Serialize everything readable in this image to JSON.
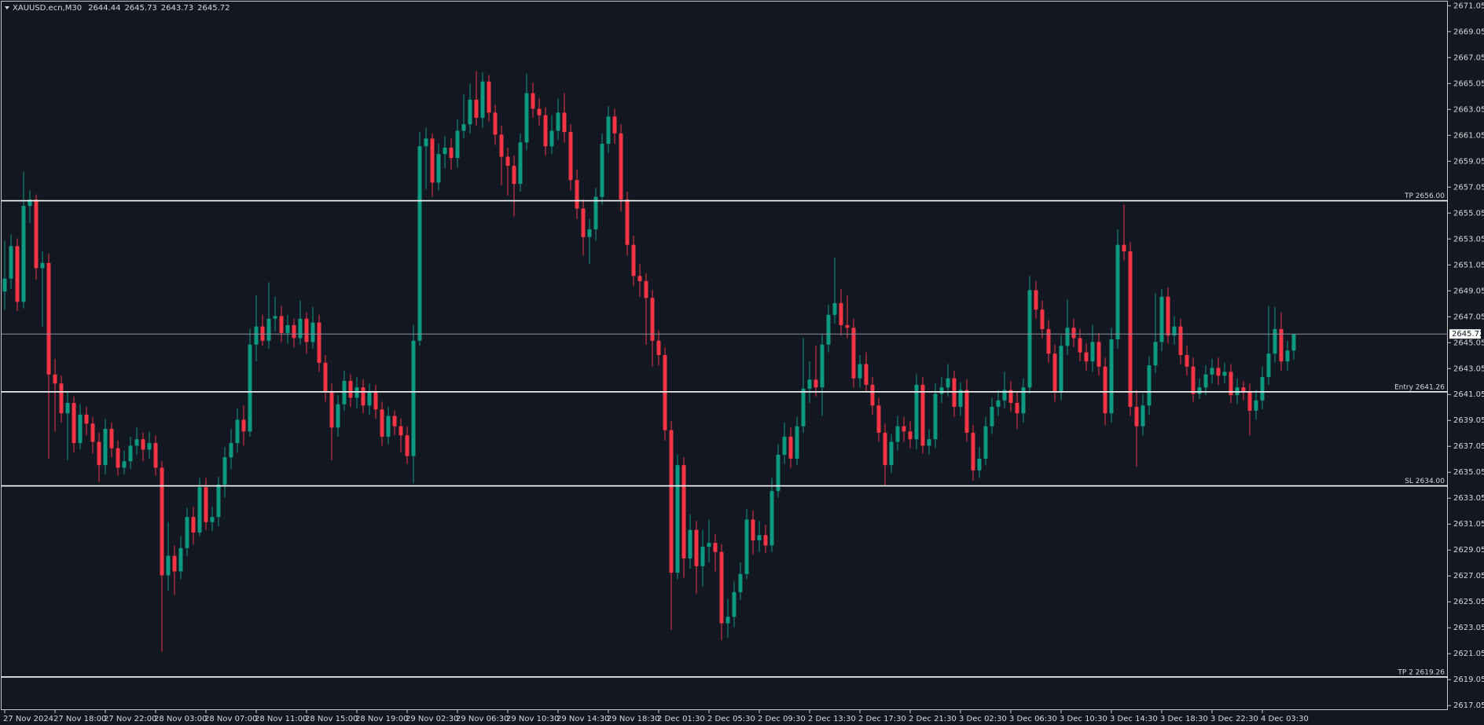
{
  "chart_data": {
    "type": "candlestick",
    "symbol": "XAUUSD.ecn,M30",
    "up_color": "#0d9a80",
    "down_color": "#f23645",
    "ylim": [
      2616.7,
      2671.37
    ],
    "yticks": [
      2671.05,
      2669.05,
      2667.05,
      2665.05,
      2663.05,
      2661.05,
      2659.05,
      2657.05,
      2655.05,
      2653.05,
      2651.05,
      2649.05,
      2647.05,
      2645.05,
      2643.05,
      2641.05,
      2639.05,
      2637.05,
      2635.05,
      2633.05,
      2631.05,
      2629.05,
      2627.05,
      2625.05,
      2623.05,
      2621.05,
      2619.05,
      2617.05
    ],
    "levels": [
      {
        "label": "TP 2656.00",
        "value": 2656.0
      },
      {
        "label": "Entry 2641.26",
        "value": 2641.26
      },
      {
        "label": "SL 2634.00",
        "value": 2634.0
      },
      {
        "label": "TP 2 2619.26",
        "value": 2619.26
      }
    ],
    "categories": [
      "27 Nov 2024",
      null,
      null,
      null,
      null,
      null,
      null,
      null,
      "27 Nov 18:00",
      null,
      null,
      null,
      null,
      null,
      null,
      null,
      "27 Nov 22:00",
      null,
      null,
      null,
      null,
      null,
      null,
      null,
      "28 Nov 03:00",
      null,
      null,
      null,
      null,
      null,
      null,
      null,
      "28 Nov 07:00",
      null,
      null,
      null,
      null,
      null,
      null,
      null,
      "28 Nov 11:00",
      null,
      null,
      null,
      null,
      null,
      null,
      null,
      "28 Nov 15:00",
      null,
      null,
      null,
      null,
      null,
      null,
      null,
      "28 Nov 19:00",
      null,
      null,
      null,
      null,
      null,
      null,
      null,
      "29 Nov 02:30",
      null,
      null,
      null,
      null,
      null,
      null,
      null,
      "29 Nov 06:30",
      null,
      null,
      null,
      null,
      null,
      null,
      null,
      "29 Nov 10:30",
      null,
      null,
      null,
      null,
      null,
      null,
      null,
      "29 Nov 14:30",
      null,
      null,
      null,
      null,
      null,
      null,
      null,
      "29 Nov 18:30",
      null,
      null,
      null,
      null,
      null,
      null,
      null,
      "2 Dec 01:30",
      null,
      null,
      null,
      null,
      null,
      null,
      null,
      "2 Dec 05:30",
      null,
      null,
      null,
      null,
      null,
      null,
      null,
      "2 Dec 09:30",
      null,
      null,
      null,
      null,
      null,
      null,
      null,
      "2 Dec 13:30",
      null,
      null,
      null,
      null,
      null,
      null,
      null,
      "2 Dec 17:30",
      null,
      null,
      null,
      null,
      null,
      null,
      null,
      "2 Dec 21:30",
      null,
      null,
      null,
      null,
      null,
      null,
      null,
      "3 Dec 02:30",
      null,
      null,
      null,
      null,
      null,
      null,
      null,
      "3 Dec 06:30",
      null,
      null,
      null,
      null,
      null,
      null,
      null,
      "3 Dec 10:30",
      null,
      null,
      null,
      null,
      null,
      null,
      null,
      "3 Dec 14:30",
      null,
      null,
      null,
      null,
      null,
      null,
      null,
      "3 Dec 18:30",
      null,
      null,
      null,
      null,
      null,
      null,
      null,
      "3 Dec 22:30",
      null,
      null,
      null,
      null,
      null,
      null,
      null,
      "4 Dec 03:30",
      null,
      null,
      null,
      null,
      null
    ],
    "open": [
      2649.0,
      2650.0,
      2652.5,
      2648.2,
      2655.6,
      2656.1,
      2650.8,
      2651.2,
      2642.6,
      2641.9,
      2639.6,
      2640.4,
      2637.3,
      2639.5,
      2638.8,
      2637.4,
      2635.6,
      2638.4,
      2636.9,
      2635.4,
      2635.9,
      2637.1,
      2637.6,
      2636.8,
      2637.3,
      2635.4,
      2627.1,
      2628.6,
      2627.4,
      2629.2,
      2631.6,
      2630.4,
      2633.9,
      2631.2,
      2631.6,
      2634.1,
      2636.2,
      2637.3,
      2639.1,
      2638.2,
      2644.9,
      2646.3,
      2645.2,
      2646.9,
      2647.1,
      2645.8,
      2646.4,
      2645.4,
      2646.9,
      2645.1,
      2646.6,
      2643.5,
      2641.2,
      2638.5,
      2640.3,
      2642.1,
      2640.8,
      2641.6,
      2640.2,
      2641.3,
      2639.9,
      2637.8,
      2639.4,
      2638.6,
      2637.9,
      2636.3,
      2645.2,
      2660.2,
      2660.8,
      2657.4,
      2659.6,
      2660.1,
      2659.3,
      2661.4,
      2661.9,
      2663.8,
      2662.4,
      2665.2,
      2662.8,
      2661.1,
      2659.4,
      2658.7,
      2657.3,
      2660.5,
      2664.3,
      2663.1,
      2662.6,
      2660.2,
      2661.4,
      2662.8,
      2661.3,
      2657.6,
      2655.4,
      2653.2,
      2653.8,
      2656.3,
      2660.4,
      2662.5,
      2661.2,
      2656.1,
      2652.6,
      2650.2,
      2649.8,
      2648.5,
      2645.2,
      2644.1,
      2638.3,
      2627.3,
      2635.6,
      2628.4,
      2630.6,
      2627.8,
      2629.3,
      2629.6,
      2628.9,
      2623.4,
      2623.9,
      2625.8,
      2627.2,
      2631.4,
      2629.8,
      2630.2,
      2629.4,
      2633.6,
      2636.4,
      2637.8,
      2636.1,
      2638.6,
      2641.5,
      2642.2,
      2641.6,
      2644.9,
      2647.2,
      2648.1,
      2646.4,
      2646.2,
      2642.3,
      2643.4,
      2641.8,
      2640.2,
      2638.1,
      2635.6,
      2637.4,
      2638.6,
      2638.2,
      2637.6,
      2641.8,
      2637.1,
      2637.6,
      2641.1,
      2641.6,
      2642.3,
      2640.1,
      2641.4,
      2638.1,
      2635.2,
      2636.1,
      2638.6,
      2640.1,
      2640.6,
      2641.4,
      2640.4,
      2639.6,
      2641.6,
      2649.1,
      2647.6,
      2646.1,
      2644.2,
      2641.2,
      2644.8,
      2646.2,
      2645.4,
      2644.3,
      2643.6,
      2645.1,
      2643.2,
      2639.6,
      2645.3,
      2652.6,
      2652.1,
      2640.1,
      2638.6,
      2640.2,
      2643.3,
      2645.1,
      2648.6,
      2645.6,
      2646.3,
      2644.1,
      2643.2,
      2641.1,
      2641.6,
      2642.6,
      2643.1,
      2642.5,
      2642.8,
      2641.0,
      2641.6,
      2641.3,
      2639.8,
      2640.6,
      2642.4,
      2644.2,
      2646.1,
      2643.6,
      2644.44
    ],
    "high": [
      2652.9,
      2653.4,
      2653.1,
      2658.2,
      2656.8,
      2656.5,
      2652.1,
      2651.9,
      2643.8,
      2642.5,
      2641.2,
      2640.9,
      2640.3,
      2640.1,
      2639.3,
      2638.1,
      2639.2,
      2638.9,
      2637.5,
      2636.7,
      2637.8,
      2638.5,
      2638.1,
      2638.2,
      2637.9,
      2635.9,
      2631.2,
      2629.4,
      2630.1,
      2632.3,
      2632.4,
      2634.6,
      2634.6,
      2632.4,
      2634.7,
      2637.0,
      2638.4,
      2640.0,
      2640.2,
      2646.1,
      2648.7,
      2647.2,
      2649.7,
      2648.6,
      2647.9,
      2647.2,
      2646.9,
      2648.3,
      2647.4,
      2647.8,
      2647.2,
      2644.1,
      2641.9,
      2641.0,
      2642.9,
      2642.6,
      2642.4,
      2642.2,
      2641.9,
      2641.8,
      2640.5,
      2640.1,
      2639.8,
      2639.2,
      2638.6,
      2646.4,
      2661.3,
      2661.6,
      2661.2,
      2660.4,
      2661.0,
      2660.8,
      2662.3,
      2664.2,
      2665.0,
      2666.0,
      2665.9,
      2665.7,
      2663.4,
      2661.8,
      2660.1,
      2659.5,
      2661.2,
      2665.8,
      2665.1,
      2663.9,
      2663.2,
      2662.6,
      2663.9,
      2664.3,
      2661.9,
      2658.4,
      2656.1,
      2654.6,
      2657.0,
      2661.2,
      2663.3,
      2663.1,
      2661.9,
      2656.7,
      2653.3,
      2651.1,
      2650.4,
      2649.1,
      2646.0,
      2644.7,
      2639.0,
      2636.4,
      2636.2,
      2631.8,
      2631.3,
      2630.6,
      2631.4,
      2630.3,
      2629.5,
      2625.3,
      2626.6,
      2628.1,
      2632.2,
      2632.1,
      2631.3,
      2631.0,
      2634.6,
      2637.2,
      2638.9,
      2638.5,
      2639.3,
      2645.4,
      2643.6,
      2644.8,
      2645.7,
      2648.0,
      2651.6,
      2649.2,
      2648.7,
      2646.9,
      2644.1,
      2644.3,
      2642.4,
      2640.8,
      2638.8,
      2638.0,
      2639.4,
      2639.3,
      2639.0,
      2642.6,
      2642.4,
      2638.4,
      2641.9,
      2642.4,
      2643.4,
      2642.9,
      2642.0,
      2642.2,
      2638.7,
      2637.0,
      2639.3,
      2640.8,
      2641.4,
      2642.8,
      2642.1,
      2641.2,
      2642.3,
      2650.2,
      2649.8,
      2648.3,
      2646.8,
      2644.9,
      2645.6,
      2648.4,
      2646.9,
      2646.1,
      2645.0,
      2646.4,
      2645.8,
      2643.9,
      2646.2,
      2653.8,
      2655.7,
      2652.8,
      2641.4,
      2641.1,
      2644.0,
      2648.9,
      2649.2,
      2649.3,
      2647.1,
      2646.9,
      2644.8,
      2643.9,
      2642.3,
      2643.3,
      2643.8,
      2643.9,
      2643.5,
      2643.4,
      2642.3,
      2642.1,
      2641.9,
      2641.4,
      2643.2,
      2647.9,
      2647.8,
      2647.4,
      2645.2,
      2645.73
    ],
    "low": [
      2647.6,
      2649.2,
      2647.5,
      2647.7,
      2654.3,
      2649.9,
      2646.3,
      2636.1,
      2638.2,
      2638.9,
      2636.0,
      2636.6,
      2636.8,
      2637.9,
      2636.5,
      2634.3,
      2634.9,
      2636.2,
      2634.8,
      2634.9,
      2635.3,
      2636.4,
      2635.9,
      2636.1,
      2634.8,
      2621.2,
      2625.9,
      2625.6,
      2626.8,
      2628.6,
      2629.5,
      2630.1,
      2630.6,
      2630.5,
      2630.9,
      2633.1,
      2635.3,
      2636.6,
      2637.1,
      2637.8,
      2643.6,
      2644.8,
      2644.6,
      2645.9,
      2645.1,
      2645.0,
      2644.7,
      2644.9,
      2644.2,
      2644.6,
      2642.8,
      2640.5,
      2636.0,
      2637.8,
      2639.8,
      2640.1,
      2640.0,
      2639.6,
      2639.5,
      2639.2,
      2637.1,
      2637.2,
      2637.9,
      2636.6,
      2635.7,
      2634.2,
      2644.8,
      2656.9,
      2656.3,
      2656.8,
      2658.5,
      2658.4,
      2658.6,
      2660.8,
      2661.2,
      2661.8,
      2661.6,
      2662.1,
      2660.3,
      2657.2,
      2656.4,
      2654.8,
      2656.7,
      2659.9,
      2662.4,
      2661.8,
      2659.5,
      2659.6,
      2660.7,
      2660.5,
      2656.8,
      2654.6,
      2651.8,
      2651.1,
      2652.9,
      2655.7,
      2659.7,
      2660.4,
      2655.2,
      2651.8,
      2649.4,
      2648.6,
      2644.9,
      2643.2,
      2643.3,
      2637.5,
      2622.9,
      2626.8,
      2626.9,
      2627.6,
      2625.7,
      2626.2,
      2628.1,
      2627.4,
      2622.1,
      2622.3,
      2623.1,
      2625.2,
      2626.8,
      2628.7,
      2628.9,
      2628.8,
      2628.9,
      2633.1,
      2635.7,
      2635.4,
      2635.6,
      2638.1,
      2640.4,
      2640.9,
      2639.4,
      2644.3,
      2646.5,
      2645.6,
      2645.4,
      2641.6,
      2641.6,
      2641.2,
      2639.5,
      2637.4,
      2634.0,
      2635.0,
      2636.7,
      2637.4,
      2636.9,
      2636.8,
      2636.5,
      2636.4,
      2636.9,
      2640.4,
      2640.9,
      2639.3,
      2639.4,
      2637.4,
      2634.4,
      2634.6,
      2635.6,
      2638.0,
      2639.4,
      2640.0,
      2639.7,
      2638.4,
      2638.9,
      2641.1,
      2646.9,
      2645.4,
      2643.5,
      2640.5,
      2640.6,
      2644.1,
      2644.7,
      2643.6,
      2642.9,
      2642.8,
      2642.5,
      2638.7,
      2638.9,
      2644.6,
      2651.4,
      2639.4,
      2635.5,
      2637.9,
      2639.5,
      2642.7,
      2644.4,
      2645.0,
      2644.9,
      2643.4,
      2642.5,
      2640.5,
      2640.7,
      2641.0,
      2641.9,
      2641.8,
      2641.9,
      2640.4,
      2640.3,
      2640.6,
      2637.9,
      2639.1,
      2639.9,
      2641.8,
      2643.5,
      2642.9,
      2642.9,
      2643.73
    ],
    "close": [
      2650.0,
      2652.5,
      2648.2,
      2655.6,
      2656.1,
      2650.8,
      2651.2,
      2642.6,
      2641.9,
      2639.6,
      2640.4,
      2637.3,
      2639.5,
      2638.8,
      2637.4,
      2635.6,
      2638.4,
      2636.9,
      2635.4,
      2635.9,
      2637.1,
      2637.6,
      2636.8,
      2637.3,
      2635.4,
      2627.1,
      2628.6,
      2627.4,
      2629.2,
      2631.6,
      2630.4,
      2633.9,
      2631.2,
      2631.6,
      2634.1,
      2636.2,
      2637.3,
      2639.1,
      2638.2,
      2644.9,
      2646.3,
      2645.2,
      2646.9,
      2647.1,
      2645.8,
      2646.4,
      2645.4,
      2646.9,
      2645.1,
      2646.6,
      2643.5,
      2641.2,
      2638.5,
      2640.3,
      2642.1,
      2640.8,
      2641.6,
      2640.2,
      2641.3,
      2639.9,
      2637.8,
      2639.4,
      2638.6,
      2637.9,
      2636.3,
      2645.2,
      2660.2,
      2660.8,
      2657.4,
      2659.6,
      2660.1,
      2659.3,
      2661.4,
      2661.9,
      2663.8,
      2662.4,
      2665.2,
      2662.8,
      2661.1,
      2659.4,
      2658.7,
      2657.3,
      2660.5,
      2664.3,
      2663.1,
      2662.6,
      2660.2,
      2661.4,
      2662.8,
      2661.3,
      2657.6,
      2655.4,
      2653.2,
      2653.8,
      2656.3,
      2660.4,
      2662.5,
      2661.2,
      2656.1,
      2652.6,
      2650.2,
      2649.8,
      2648.5,
      2645.2,
      2644.1,
      2638.3,
      2627.3,
      2635.6,
      2628.4,
      2630.6,
      2627.8,
      2629.3,
      2629.6,
      2628.9,
      2623.4,
      2623.9,
      2625.8,
      2627.2,
      2631.4,
      2629.8,
      2630.2,
      2629.4,
      2633.6,
      2636.4,
      2637.8,
      2636.1,
      2638.6,
      2641.5,
      2642.2,
      2641.6,
      2644.9,
      2647.2,
      2648.1,
      2646.4,
      2646.2,
      2642.3,
      2643.4,
      2641.8,
      2640.2,
      2638.1,
      2635.6,
      2637.4,
      2638.6,
      2638.2,
      2637.6,
      2641.8,
      2637.1,
      2637.6,
      2641.1,
      2641.6,
      2642.3,
      2640.1,
      2641.4,
      2638.1,
      2635.2,
      2636.1,
      2638.6,
      2640.1,
      2640.6,
      2641.4,
      2640.4,
      2639.6,
      2641.6,
      2649.1,
      2647.6,
      2646.1,
      2644.2,
      2641.2,
      2644.8,
      2646.2,
      2645.4,
      2644.3,
      2643.6,
      2645.1,
      2643.2,
      2639.6,
      2645.3,
      2652.6,
      2652.1,
      2640.1,
      2638.6,
      2640.2,
      2643.3,
      2645.1,
      2648.6,
      2645.6,
      2646.3,
      2644.1,
      2643.2,
      2641.1,
      2641.6,
      2642.6,
      2643.1,
      2642.5,
      2642.8,
      2641.0,
      2641.6,
      2641.3,
      2639.8,
      2640.6,
      2642.4,
      2644.2,
      2646.1,
      2643.6,
      2644.44,
      2645.72
    ]
  }
}
